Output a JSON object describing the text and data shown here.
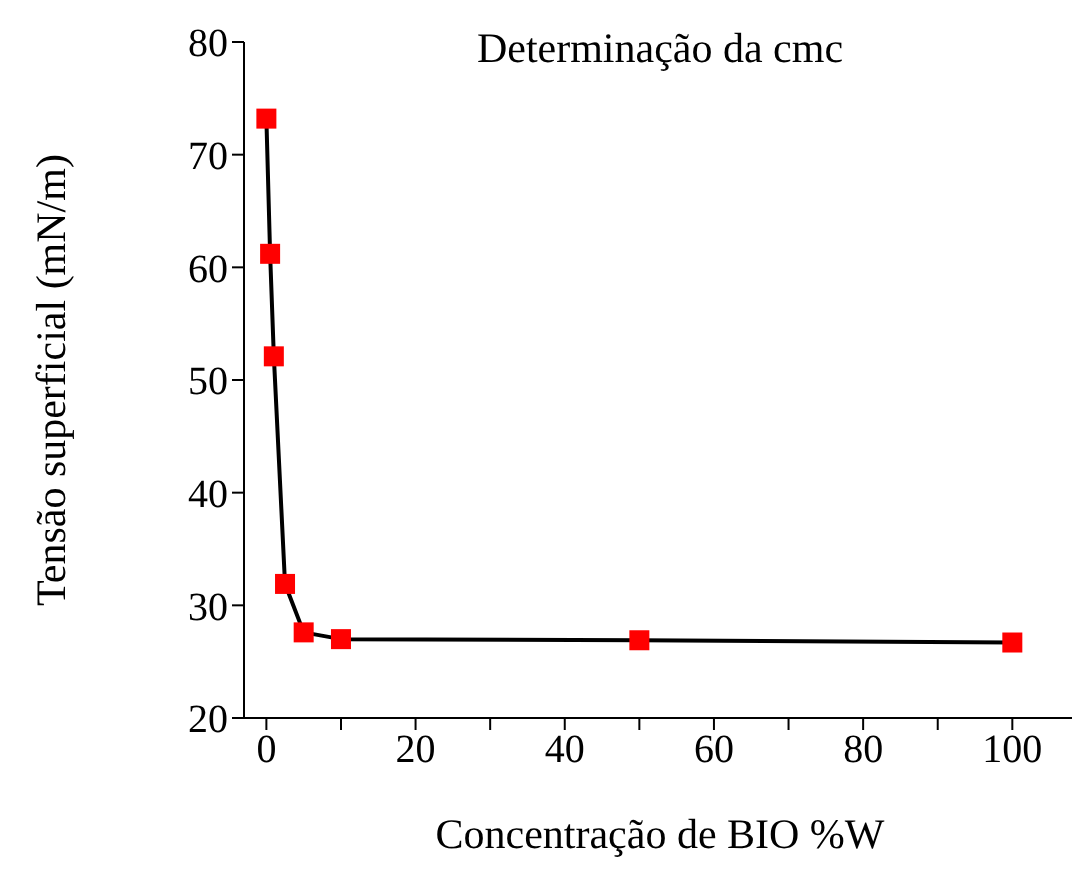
{
  "chart_data": {
    "type": "line",
    "title": "Determinação da cmc",
    "xlabel": "Concentração de BIO %W",
    "ylabel": "Tensão superficial (mN/m)",
    "x": [
      0,
      0.5,
      1,
      2.5,
      5,
      10,
      50,
      100
    ],
    "series": [
      {
        "color": "#ff0000",
        "values": [
          73.2,
          61.2,
          52.1,
          31.9,
          27.6,
          27.0,
          26.9,
          26.7
        ]
      }
    ],
    "xlim": [
      -3,
      108
    ],
    "xticks": [
      0,
      {
        "value": 10,
        "label": null
      },
      20,
      {
        "value": 30,
        "label": null
      },
      40,
      {
        "value": 50,
        "label": null
      },
      60,
      {
        "value": 70,
        "label": null
      },
      80,
      {
        "value": 90,
        "label": null
      },
      100
    ],
    "ylim": [
      20,
      80
    ],
    "yticks": [
      20,
      30,
      40,
      50,
      60,
      70,
      80
    ],
    "marker": "square",
    "line_style": "solid",
    "grid": false,
    "legend": false
  }
}
